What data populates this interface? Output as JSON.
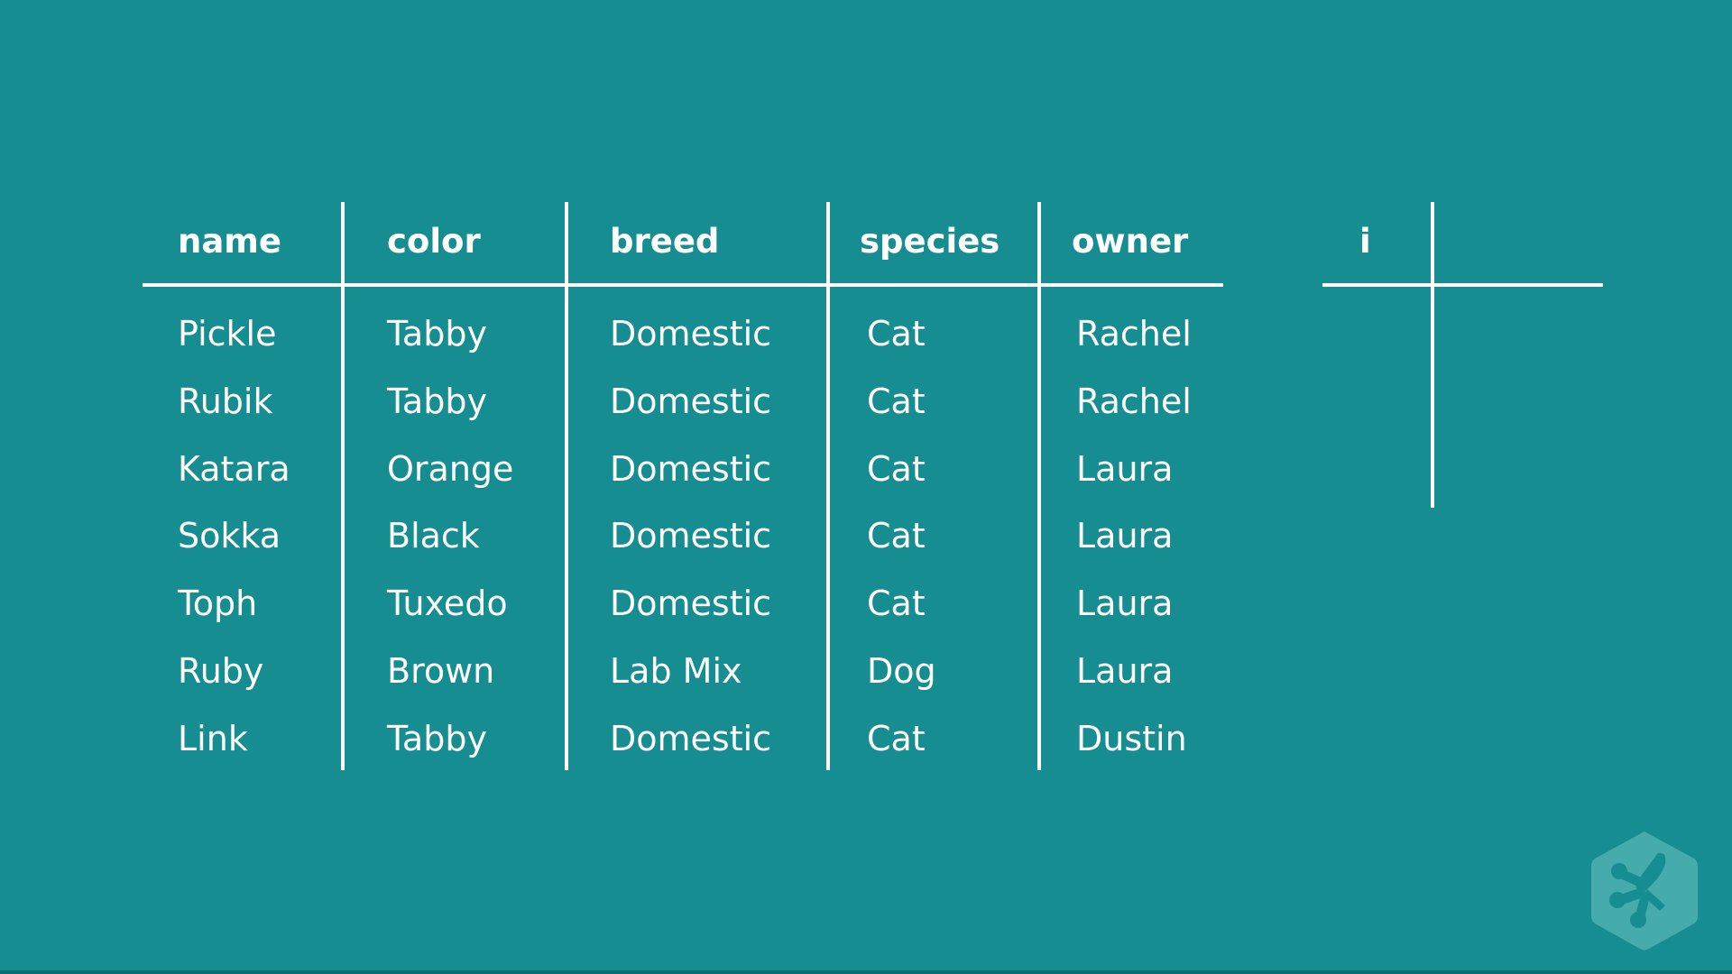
{
  "table": {
    "columns": [
      "name",
      "color",
      "breed",
      "species",
      "owner"
    ],
    "rows": [
      [
        "Pickle",
        "Tabby",
        "Domestic",
        "Cat",
        "Rachel"
      ],
      [
        "Rubik",
        "Tabby",
        "Domestic",
        "Cat",
        "Rachel"
      ],
      [
        "Katara",
        "Orange",
        "Domestic",
        "Cat",
        "Laura"
      ],
      [
        "Sokka",
        "Black",
        "Domestic",
        "Cat",
        "Laura"
      ],
      [
        "Toph",
        "Tuxedo",
        "Domestic",
        "Cat",
        "Laura"
      ],
      [
        "Ruby",
        "Brown",
        "Lab Mix",
        "Dog",
        "Laura"
      ],
      [
        "Link",
        "Tabby",
        "Domestic",
        "Cat",
        "Dustin"
      ]
    ]
  },
  "side_table": {
    "header": "i"
  },
  "logo": {
    "icon": "treehouse-logo-icon"
  },
  "colors": {
    "background": "#168d91",
    "lines": "#ffffff",
    "logo": "#4fb0b2"
  }
}
